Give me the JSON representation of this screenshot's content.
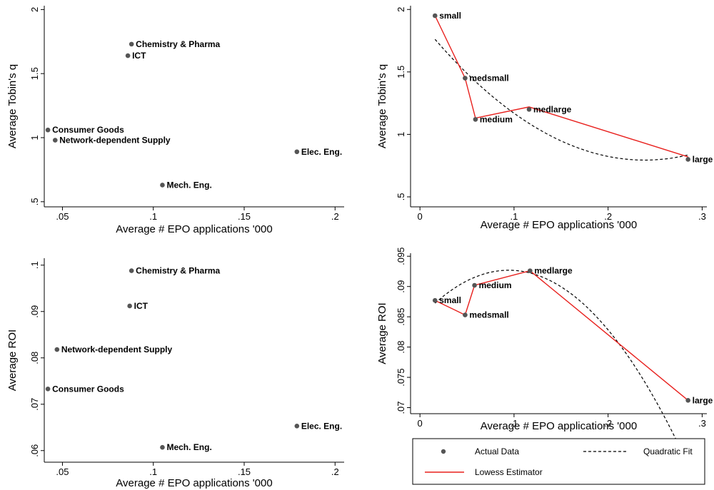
{
  "colors": {
    "points": "#555555",
    "lowess": "#e8201d",
    "quadratic": "#000000"
  },
  "legend": {
    "actual_label": "Actual Data",
    "quadratic_label": "Quadratic Fit",
    "lowess_label": "Lowess Estimator"
  },
  "chart_data": [
    {
      "type": "scatter",
      "xlabel": "Average # EPO applications '000",
      "ylabel": "Average Tobin's q",
      "xlim": [
        0.04,
        0.205
      ],
      "ylim": [
        0.46,
        2.03
      ],
      "xticks": [
        0.05,
        0.1,
        0.15,
        0.2
      ],
      "xtick_labels": [
        ".05",
        ".1",
        ".15",
        ".2"
      ],
      "yticks": [
        0.5,
        1,
        1.5,
        2
      ],
      "ytick_labels": [
        ".5",
        "1",
        "1.5",
        "2"
      ],
      "points": [
        {
          "label": "Chemistry & Pharma",
          "x": 0.088,
          "y": 1.73
        },
        {
          "label": "ICT",
          "x": 0.086,
          "y": 1.64
        },
        {
          "label": "Consumer Goods",
          "x": 0.042,
          "y": 1.06
        },
        {
          "label": "Network-dependent Supply",
          "x": 0.046,
          "y": 0.98
        },
        {
          "label": "Elec. Eng.",
          "x": 0.179,
          "y": 0.89
        },
        {
          "label": "Mech. Eng.",
          "x": 0.105,
          "y": 0.63
        }
      ]
    },
    {
      "type": "scatter",
      "xlabel": "Average # EPO applications '000",
      "ylabel": "Average Tobin's q",
      "xlim": [
        -0.01,
        0.305
      ],
      "ylim": [
        0.42,
        2.03
      ],
      "xticks": [
        0,
        0.1,
        0.2,
        0.3
      ],
      "xtick_labels": [
        "0",
        ".1",
        ".2",
        ".3"
      ],
      "yticks": [
        0.5,
        1,
        1.5,
        2
      ],
      "ytick_labels": [
        ".5",
        "1",
        "1.5",
        "2"
      ],
      "points": [
        {
          "label": "small",
          "x": 0.016,
          "y": 1.95
        },
        {
          "label": "medsmall",
          "x": 0.048,
          "y": 1.45
        },
        {
          "label": "medium",
          "x": 0.059,
          "y": 1.12
        },
        {
          "label": "medlarge",
          "x": 0.116,
          "y": 1.2
        },
        {
          "label": "large",
          "x": 0.285,
          "y": 0.8
        }
      ],
      "lowess": {
        "x": [
          0.016,
          0.048,
          0.059,
          0.116,
          0.285
        ],
        "y": [
          1.95,
          1.45,
          1.13,
          1.22,
          0.82
        ]
      },
      "quadratic": {
        "a": 1.9045,
        "b": -9.297,
        "c": 19.46
      }
    },
    {
      "type": "scatter",
      "xlabel": "Average # EPO applications '000",
      "ylabel": "Average ROI",
      "xlim": [
        0.04,
        0.205
      ],
      "ylim": [
        0.0575,
        0.1015
      ],
      "xticks": [
        0.05,
        0.1,
        0.15,
        0.2
      ],
      "xtick_labels": [
        ".05",
        ".1",
        ".15",
        ".2"
      ],
      "yticks": [
        0.06,
        0.07,
        0.08,
        0.09,
        0.1
      ],
      "ytick_labels": [
        ".06",
        ".07",
        ".08",
        ".09",
        ".1"
      ],
      "points": [
        {
          "label": "Chemistry & Pharma",
          "x": 0.088,
          "y": 0.0988
        },
        {
          "label": "ICT",
          "x": 0.087,
          "y": 0.0912
        },
        {
          "label": "Network-dependent Supply",
          "x": 0.047,
          "y": 0.0818
        },
        {
          "label": "Consumer Goods",
          "x": 0.042,
          "y": 0.0733
        },
        {
          "label": "Elec. Eng.",
          "x": 0.179,
          "y": 0.0653
        },
        {
          "label": "Mech. Eng.",
          "x": 0.105,
          "y": 0.0607
        }
      ]
    },
    {
      "type": "scatter",
      "xlabel": "Average # EPO applications '000",
      "ylabel": "Average ROI",
      "xlim": [
        -0.01,
        0.305
      ],
      "ylim": [
        0.069,
        0.0955
      ],
      "xticks": [
        0,
        0.1,
        0.2,
        0.3
      ],
      "xtick_labels": [
        "0",
        ".1",
        ".2",
        ".3"
      ],
      "yticks": [
        0.07,
        0.075,
        0.08,
        0.085,
        0.09,
        0.095
      ],
      "ytick_labels": [
        ".07",
        ".075",
        ".08",
        ".085",
        ".09",
        ".095"
      ],
      "points": [
        {
          "label": "small",
          "x": 0.016,
          "y": 0.0877
        },
        {
          "label": "medsmall",
          "x": 0.048,
          "y": 0.0853
        },
        {
          "label": "medium",
          "x": 0.058,
          "y": 0.0902
        },
        {
          "label": "medlarge",
          "x": 0.117,
          "y": 0.0926
        },
        {
          "label": "large",
          "x": 0.285,
          "y": 0.0712
        }
      ],
      "lowess": {
        "x": [
          0.016,
          0.048,
          0.058,
          0.117,
          0.285
        ],
        "y": [
          0.0877,
          0.0853,
          0.0902,
          0.0926,
          0.0712
        ]
      },
      "quadratic": {
        "a": 0.0848,
        "b": 0.167,
        "c": -0.884
      }
    }
  ]
}
